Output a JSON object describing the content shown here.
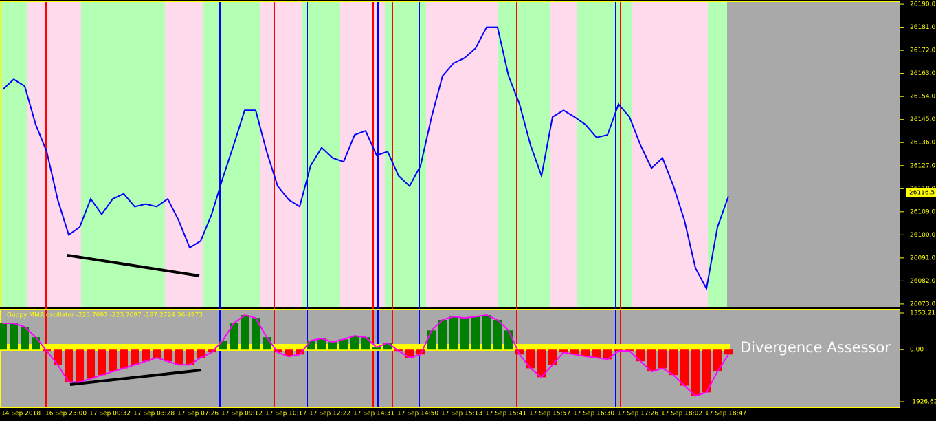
{
  "chart_data": [
    {
      "type": "line",
      "color": "#0000ff",
      "last_price_label": "26116.5",
      "categories": [
        "14 Sep 2018",
        null,
        null,
        null,
        "16 Sep 23:00",
        null,
        null,
        null,
        "17 Sep 00:32",
        null,
        null,
        null,
        "17 Sep 03:28",
        null,
        null,
        null,
        "17 Sep 07:26",
        null,
        null,
        null,
        "17 Sep 09:12",
        null,
        null,
        null,
        "17 Sep 10:17",
        null,
        null,
        null,
        "17 Sep 12:22",
        null,
        null,
        null,
        "17 Sep 14:31",
        null,
        null,
        null,
        "17 Sep 14:50",
        null,
        null,
        null,
        "17 Sep 15:13",
        null,
        null,
        null,
        "17 Sep 15:41",
        null,
        null,
        null,
        "17 Sep 15:57",
        null,
        null,
        null,
        "17 Sep 16:30",
        null,
        null,
        null,
        "17 Sep 17:26",
        null,
        null,
        null,
        "17 Sep 18:02",
        null,
        null,
        null,
        "17 Sep 18:47",
        null,
        null
      ],
      "values": [
        26156.7,
        26160.7,
        26158,
        26143,
        26132.5,
        26113.7,
        26100,
        26103,
        26114,
        26108,
        26114,
        26116,
        26111,
        26112,
        26111,
        26114,
        26105.6,
        26095,
        26097.6,
        26108,
        26122,
        26135,
        26148.6,
        26148.6,
        26132.5,
        26119,
        26113.7,
        26111,
        26127,
        26134,
        26130,
        26128.5,
        26139,
        26140.6,
        26131,
        26132.5,
        26123,
        26119,
        26127,
        26146,
        26162,
        26167,
        26169,
        26172.8,
        26181,
        26181,
        26162,
        26151,
        26135,
        26123,
        26146,
        26148.6,
        26146,
        26143,
        26138,
        26139,
        26151,
        26146,
        26135,
        26126,
        26130,
        26119,
        26105.6,
        26087,
        26079,
        26103,
        26115
      ],
      "ylim": [
        26071.9,
        26191.1
      ],
      "yticks": [
        {
          "value": 26073,
          "label": "26073.0"
        },
        {
          "value": 26082,
          "label": "26082.0"
        },
        {
          "value": 26091,
          "label": "26091.0"
        },
        {
          "value": 26100,
          "label": "26100.0"
        },
        {
          "value": 26109,
          "label": "26109.0"
        },
        {
          "value": 26118,
          "label": "26118.0"
        },
        {
          "value": 26127,
          "label": "26127.0"
        },
        {
          "value": 26136,
          "label": "26136.0"
        },
        {
          "value": 26145,
          "label": "26145.0"
        },
        {
          "value": 26154,
          "label": "26154.0"
        },
        {
          "value": 26163,
          "label": "26163.0"
        },
        {
          "value": 26172,
          "label": "26172.0"
        },
        {
          "value": 26181,
          "label": "26181.0"
        },
        {
          "value": 26190,
          "label": "26190.0"
        }
      ]
    },
    {
      "type": "bar",
      "title": "Guppy MMA oscillator -223.7697 -223.7697 -187.2724 36.4973",
      "annotation": "Divergence Assessor",
      "positive_color": "#008000",
      "negative_color": "#ff0000",
      "outline_color": "#ff00ff",
      "values": [
        970,
        970,
        840,
        460,
        -50,
        -560,
        -1200,
        -1200,
        -1070,
        -940,
        -810,
        -690,
        -560,
        -430,
        -300,
        -430,
        -560,
        -560,
        -300,
        -100,
        330,
        970,
        1275,
        1170,
        460,
        -100,
        -250,
        -180,
        330,
        410,
        280,
        380,
        510,
        460,
        80,
        250,
        -50,
        -300,
        -180,
        710,
        1100,
        1220,
        1170,
        1220,
        1275,
        1100,
        710,
        -180,
        -690,
        -1020,
        -560,
        -100,
        -180,
        -250,
        -300,
        -360,
        -50,
        -50,
        -430,
        -810,
        -690,
        -940,
        -1330,
        -1710,
        -1580,
        -810,
        -180
      ],
      "ylim": [
        -2130,
        1480
      ],
      "yticks": [
        {
          "value": 1353.216,
          "label": "1353.216"
        },
        {
          "value": 0,
          "label": "0.00"
        },
        {
          "value": -1926.623,
          "label": "-1926.623"
        }
      ]
    }
  ]
}
